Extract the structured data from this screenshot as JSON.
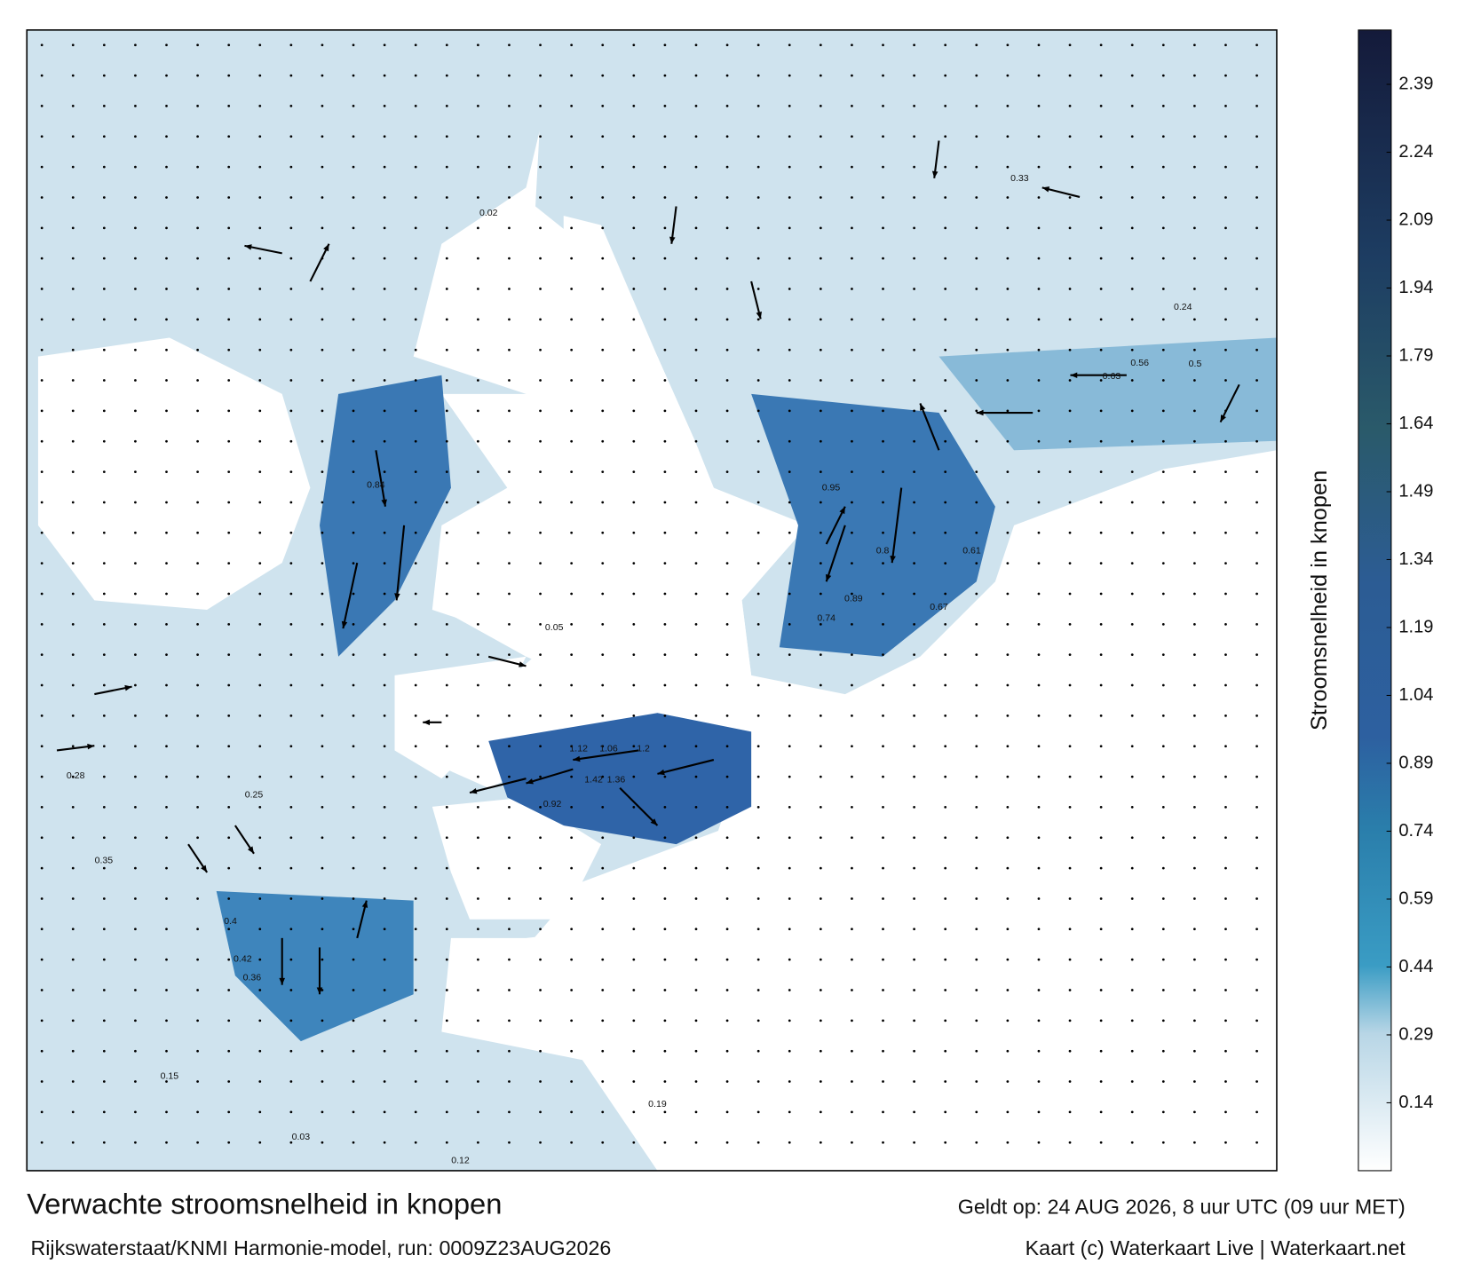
{
  "title": "Verwachte stroomsnelheid in knopen",
  "subtitle": "Rijkswaterstaat/KNMI Harmonie-model, run: 0009Z23AUG2026",
  "valid_time": "Geldt op: 24 AUG 2026, 8 uur UTC (09 uur MET)",
  "credit": "Kaart (c) Waterkaart Live | Waterkaart.net",
  "colorbar": {
    "label": "Stroomsnelheid in knopen",
    "lim": [
      -0.01,
      2.51
    ],
    "ticks": [
      0.14,
      0.29,
      0.44,
      0.59,
      0.74,
      0.89,
      1.04,
      1.19,
      1.34,
      1.49,
      1.64,
      1.79,
      1.94,
      2.09,
      2.24,
      2.39
    ]
  },
  "map_labels": [
    0.95,
    1.42,
    1.36,
    1.06,
    1.2,
    1.12,
    0.92,
    0.89,
    0.84,
    0.56,
    0.63,
    0.5,
    0.33,
    0.24,
    0.4,
    0.36,
    0.42,
    0.35,
    0.19,
    0.12,
    0.02,
    0.03,
    0.15,
    0.28,
    0.25,
    0.67,
    0.74,
    0.61,
    0.8,
    0.05
  ]
}
